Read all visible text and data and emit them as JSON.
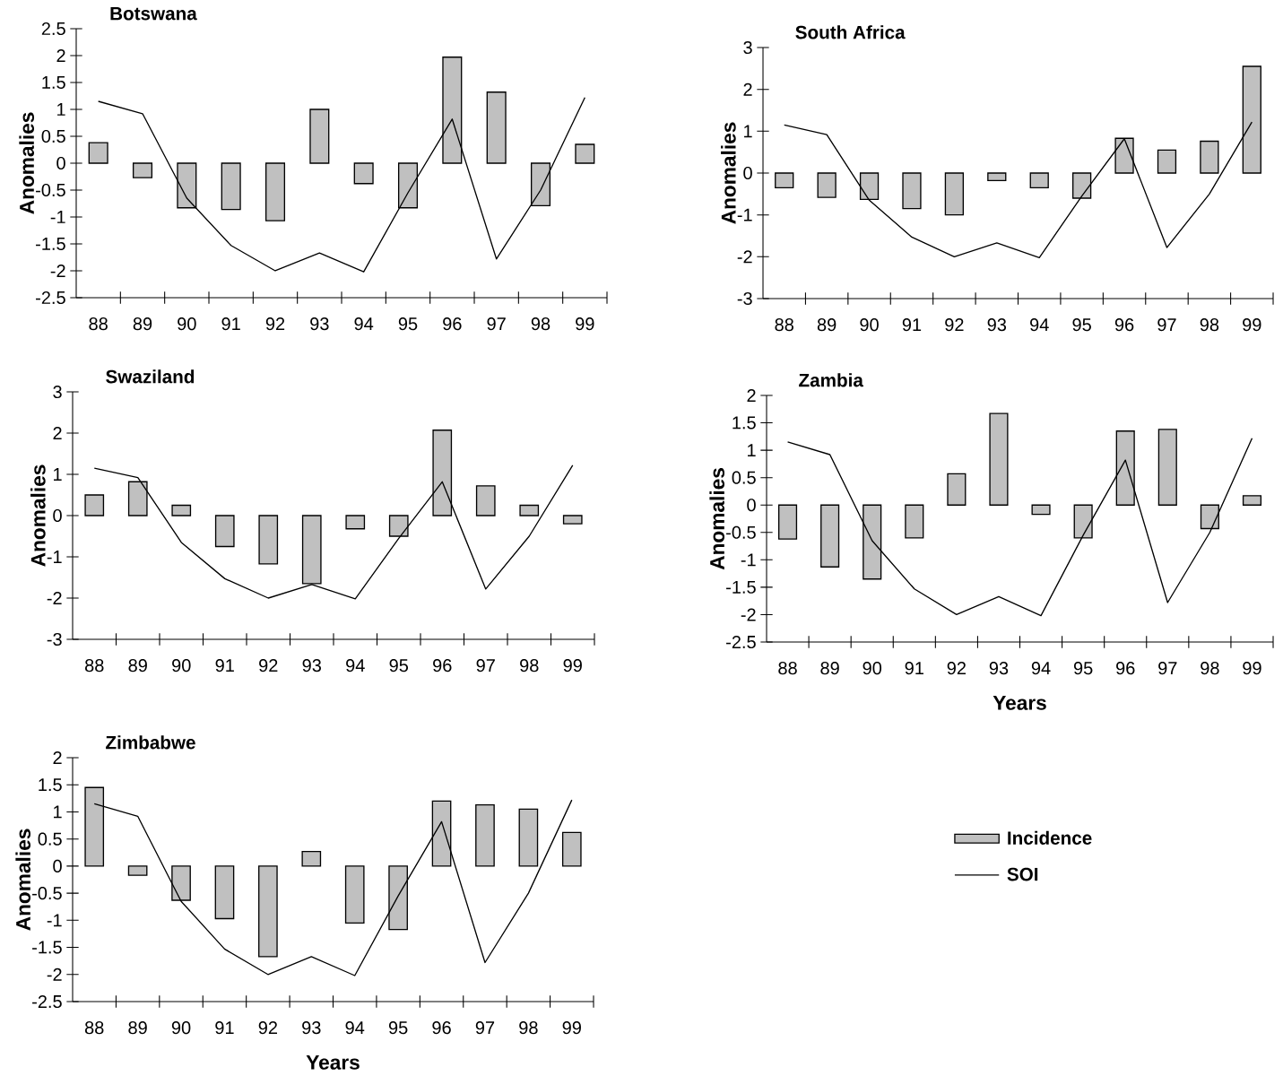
{
  "chart_data": [
    {
      "type": "bar",
      "title": "Botswana",
      "ylabel": "Anomalies",
      "categories": [
        "88",
        "89",
        "90",
        "91",
        "92",
        "93",
        "94",
        "95",
        "96",
        "97",
        "98",
        "99"
      ],
      "ylim": [
        -2.5,
        2.5
      ],
      "yticks": [
        -2.5,
        -2,
        -1.5,
        -1,
        -0.5,
        0,
        0.5,
        1,
        1.5,
        2,
        2.5
      ],
      "series": [
        {
          "type": "bar",
          "color": "#c0c0c0",
          "values": [
            0.38,
            -0.27,
            -0.83,
            -0.86,
            -1.07,
            1.0,
            -0.38,
            -0.83,
            1.97,
            1.32,
            -0.79,
            0.35
          ]
        },
        {
          "type": "line",
          "color": "#000000",
          "values": [
            1.15,
            0.92,
            -0.65,
            -1.53,
            -2.0,
            -1.67,
            -2.02,
            -0.55,
            0.82,
            -1.78,
            -0.5,
            1.22
          ]
        }
      ]
    },
    {
      "type": "bar",
      "title": "South Africa",
      "ylabel": "Anomalies",
      "categories": [
        "88",
        "89",
        "90",
        "91",
        "92",
        "93",
        "94",
        "95",
        "96",
        "97",
        "98",
        "99"
      ],
      "ylim": [
        -3,
        3
      ],
      "yticks": [
        -3,
        -2,
        -1,
        0,
        1,
        2,
        3
      ],
      "series": [
        {
          "type": "bar",
          "color": "#c0c0c0",
          "values": [
            -0.35,
            -0.58,
            -0.63,
            -0.85,
            -1.0,
            -0.18,
            -0.35,
            -0.6,
            0.83,
            0.55,
            0.76,
            2.55
          ]
        },
        {
          "type": "line",
          "color": "#000000",
          "values": [
            1.15,
            0.92,
            -0.65,
            -1.53,
            -2.0,
            -1.67,
            -2.02,
            -0.55,
            0.82,
            -1.78,
            -0.5,
            1.22
          ]
        }
      ]
    },
    {
      "type": "bar",
      "title": "Swaziland",
      "ylabel": "Anomalies",
      "categories": [
        "88",
        "89",
        "90",
        "91",
        "92",
        "93",
        "94",
        "95",
        "96",
        "97",
        "98",
        "99"
      ],
      "ylim": [
        -3,
        3
      ],
      "yticks": [
        -3,
        -2,
        -1,
        0,
        1,
        2,
        3
      ],
      "series": [
        {
          "type": "bar",
          "color": "#c0c0c0",
          "values": [
            0.5,
            0.82,
            0.25,
            -0.75,
            -1.17,
            -1.65,
            -0.32,
            -0.5,
            2.07,
            0.72,
            0.25,
            -0.2
          ]
        },
        {
          "type": "line",
          "color": "#000000",
          "values": [
            1.15,
            0.92,
            -0.65,
            -1.53,
            -2.0,
            -1.67,
            -2.02,
            -0.55,
            0.82,
            -1.78,
            -0.5,
            1.22
          ]
        }
      ]
    },
    {
      "type": "bar",
      "title": "Zambia",
      "xlabel": "Years",
      "ylabel": "Anomalies",
      "categories": [
        "88",
        "89",
        "90",
        "91",
        "92",
        "93",
        "94",
        "95",
        "96",
        "97",
        "98",
        "99"
      ],
      "ylim": [
        -2.5,
        2
      ],
      "yticks": [
        -2.5,
        -2,
        -1.5,
        -1,
        -0.5,
        0,
        0.5,
        1,
        1.5,
        2
      ],
      "series": [
        {
          "type": "bar",
          "color": "#c0c0c0",
          "values": [
            -0.62,
            -1.13,
            -1.35,
            -0.6,
            0.57,
            1.67,
            -0.17,
            -0.6,
            1.35,
            1.38,
            -0.43,
            0.17
          ]
        },
        {
          "type": "line",
          "color": "#000000",
          "values": [
            1.15,
            0.92,
            -0.65,
            -1.53,
            -2.0,
            -1.67,
            -2.02,
            -0.55,
            0.82,
            -1.78,
            -0.5,
            1.22
          ]
        }
      ]
    },
    {
      "type": "bar",
      "title": "Zimbabwe",
      "xlabel": "Years",
      "ylabel": "Anomalies",
      "categories": [
        "88",
        "89",
        "90",
        "91",
        "92",
        "93",
        "94",
        "95",
        "96",
        "97",
        "98",
        "99"
      ],
      "ylim": [
        -2.5,
        2
      ],
      "yticks": [
        -2.5,
        -2,
        -1.5,
        -1,
        -0.5,
        0,
        0.5,
        1,
        1.5,
        2
      ],
      "legend": "right",
      "series": [
        {
          "type": "bar",
          "name": "Incidence",
          "color": "#c0c0c0",
          "values": [
            1.45,
            -0.17,
            -0.63,
            -0.97,
            -1.67,
            0.27,
            -1.05,
            -1.17,
            1.2,
            1.13,
            1.05,
            0.62
          ]
        },
        {
          "type": "line",
          "name": "SOI",
          "color": "#000000",
          "values": [
            1.15,
            0.92,
            -0.65,
            -1.53,
            -2.0,
            -1.67,
            -2.02,
            -0.55,
            0.82,
            -1.78,
            -0.5,
            1.22
          ]
        }
      ]
    }
  ]
}
